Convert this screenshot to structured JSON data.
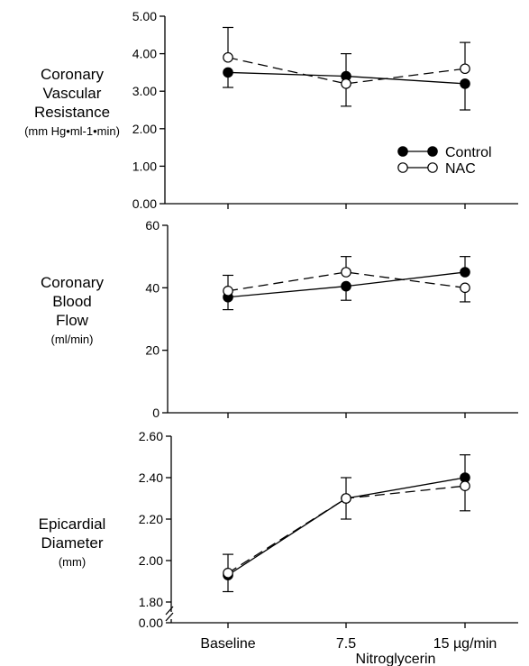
{
  "chart_data": [
    {
      "type": "line",
      "panel": "resistance",
      "ylabel_lines": [
        "Coronary",
        "Vascular",
        "Resistance"
      ],
      "yunit": "(mm Hg•ml-1•min)",
      "categories": [
        "Baseline",
        "7.5",
        "15 µg/min"
      ],
      "ylim": [
        0,
        5
      ],
      "yticks": [
        "0.00",
        "1.00",
        "2.00",
        "3.00",
        "4.00",
        "5.00"
      ],
      "series": [
        {
          "name": "Control",
          "values": [
            3.5,
            3.4,
            3.2
          ],
          "error_low": [
            3.1,
            2.6,
            2.5
          ],
          "error_high": [
            null,
            4.0,
            null
          ]
        },
        {
          "name": "NAC",
          "values": [
            3.9,
            3.2,
            3.6
          ],
          "error_low": [
            null,
            null,
            null
          ],
          "error_high": [
            4.7,
            null,
            4.3
          ]
        }
      ],
      "legend": {
        "position": "right",
        "items": [
          {
            "label": "Control"
          },
          {
            "label": "NAC"
          }
        ]
      }
    },
    {
      "type": "line",
      "panel": "flow",
      "ylabel_lines": [
        "Coronary",
        "Blood",
        "Flow"
      ],
      "yunit": "(ml/min)",
      "categories": [
        "Baseline",
        "7.5",
        "15 µg/min"
      ],
      "ylim": [
        0,
        60
      ],
      "yticks": [
        "0",
        "20",
        "40",
        "60"
      ],
      "series": [
        {
          "name": "Control",
          "values": [
            37,
            40.5,
            45
          ],
          "error_low": [
            33,
            36,
            null
          ],
          "error_high": [
            null,
            null,
            50
          ]
        },
        {
          "name": "NAC",
          "values": [
            39,
            45,
            40
          ],
          "error_low": [
            null,
            null,
            35.5
          ],
          "error_high": [
            44,
            50,
            null
          ]
        }
      ]
    },
    {
      "type": "line",
      "panel": "diameter",
      "ylabel_lines": [
        "Epicardial",
        "Diameter"
      ],
      "yunit": "(mm)",
      "categories": [
        "Baseline",
        "7.5",
        "15 µg/min"
      ],
      "ylim": [
        1.8,
        2.6
      ],
      "axis_break": true,
      "yticks": [
        "1.80",
        "2.00",
        "2.20",
        "2.40",
        "2.60"
      ],
      "ytick_below_break": "0.00",
      "xlabel": "Nitroglycerin",
      "series": [
        {
          "name": "Control",
          "values": [
            1.93,
            2.3,
            2.4
          ],
          "error_low": [
            1.85,
            null,
            null
          ],
          "error_high": [
            null,
            2.4,
            2.51
          ]
        },
        {
          "name": "NAC",
          "values": [
            1.94,
            2.3,
            2.36
          ],
          "error_low": [
            null,
            2.2,
            2.24
          ],
          "error_high": [
            2.03,
            null,
            null
          ]
        }
      ]
    }
  ]
}
